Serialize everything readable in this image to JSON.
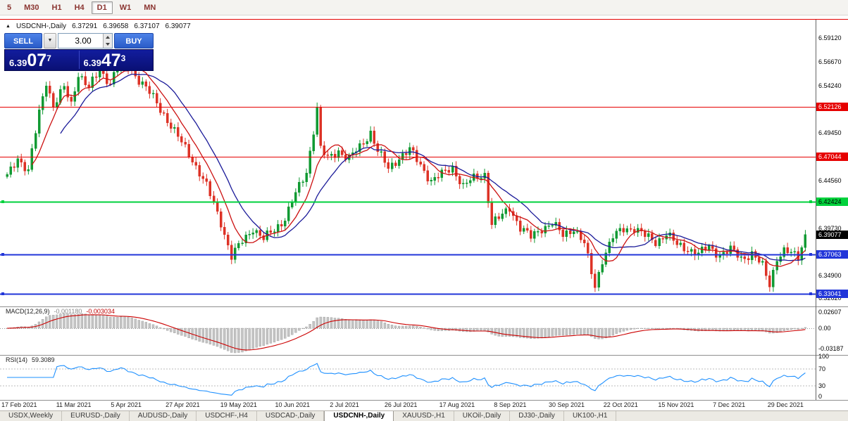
{
  "toolbar": {
    "periods": [
      "5",
      "M30",
      "H1",
      "H4",
      "D1",
      "W1",
      "MN"
    ],
    "active": "D1"
  },
  "chart_header": {
    "symbol_marker": "▲",
    "title": "USDCNH-,Daily",
    "open": "6.37291",
    "high": "6.39658",
    "low": "6.37107",
    "close": "6.39077"
  },
  "trade_panel": {
    "sell_label": "SELL",
    "buy_label": "BUY",
    "volume_value": "3.00",
    "dropdown_icon": "▼",
    "bid": {
      "prefix": "6.39",
      "big": "07",
      "sup": "7"
    },
    "ask": {
      "prefix": "6.39",
      "big": "47",
      "sup": "3"
    }
  },
  "tabs": {
    "items": [
      "USDX,Weekly",
      "EURUSD-,Daily",
      "AUDUSD-,Daily",
      "USDCHF-,H4",
      "USDCAD-,Daily",
      "USDCNH-,Daily",
      "XAUUSD-,H1",
      "UKOil-,Daily",
      "DJ30-,Daily",
      "UK100-,H1"
    ],
    "active_index": 5
  },
  "chart_data": [
    {
      "type": "candlestick",
      "symbol": "USDCNH-",
      "timeframe": "Daily",
      "ohlc": {
        "open": 6.37291,
        "high": 6.39658,
        "low": 6.37107,
        "close": 6.39077
      },
      "ylim": [
        6.322,
        6.6
      ],
      "x_labels": [
        "17 Feb 2021",
        "11 Mar 2021",
        "5 Apr 2021",
        "27 Apr 2021",
        "19 May 2021",
        "10 Jun 2021",
        "2 Jul 2021",
        "26 Jul 2021",
        "17 Aug 2021",
        "8 Sep 2021",
        "30 Sep 2021",
        "22 Oct 2021",
        "15 Nov 2021",
        "7 Dec 2021",
        "29 Dec 2021"
      ],
      "y_axis_labels": [
        "6.59120",
        "6.56670",
        "6.54240",
        "6.49450",
        "6.44560",
        "6.39730",
        "6.34900",
        "6.32620"
      ],
      "levels": [
        {
          "price": 6.52126,
          "display": "6.52126",
          "color": "#e60000",
          "text": "#ffffff",
          "width": 1
        },
        {
          "price": 6.47044,
          "display": "6.47044",
          "color": "#e60000",
          "text": "#ffffff",
          "width": 1
        },
        {
          "price": 6.42424,
          "display": "6.42424",
          "color": "#00d23c",
          "text": "#000000",
          "width": 2
        },
        {
          "price": 6.37063,
          "display": "6.37063",
          "color": "#2236d9",
          "text": "#ffffff",
          "width": 2
        },
        {
          "price": 6.33041,
          "display": "6.33041",
          "color": "#2236d9",
          "text": "#ffffff",
          "width": 2
        }
      ],
      "current_price": {
        "price": 6.39077,
        "display": "6.39077",
        "color": "#000000",
        "text": "#ffffff"
      },
      "candles_count": 225,
      "price_path": [
        [
          0,
          6.45
        ],
        [
          3,
          6.47
        ],
        [
          6,
          6.455
        ],
        [
          9,
          6.515
        ],
        [
          11,
          6.548
        ],
        [
          13,
          6.522
        ],
        [
          16,
          6.54
        ],
        [
          18,
          6.524
        ],
        [
          20,
          6.556
        ],
        [
          23,
          6.54
        ],
        [
          26,
          6.558
        ],
        [
          29,
          6.546
        ],
        [
          32,
          6.57
        ],
        [
          35,
          6.558
        ],
        [
          38,
          6.545
        ],
        [
          41,
          6.53
        ],
        [
          44,
          6.514
        ],
        [
          48,
          6.49
        ],
        [
          52,
          6.468
        ],
        [
          56,
          6.44
        ],
        [
          60,
          6.404
        ],
        [
          63,
          6.368
        ],
        [
          66,
          6.384
        ],
        [
          69,
          6.398
        ],
        [
          72,
          6.386
        ],
        [
          75,
          6.396
        ],
        [
          78,
          6.408
        ],
        [
          81,
          6.432
        ],
        [
          84,
          6.455
        ],
        [
          86,
          6.498
        ],
        [
          87,
          6.52
        ],
        [
          88,
          6.478
        ],
        [
          90,
          6.468
        ],
        [
          93,
          6.477
        ],
        [
          96,
          6.468
        ],
        [
          99,
          6.48
        ],
        [
          102,
          6.496
        ],
        [
          104,
          6.476
        ],
        [
          107,
          6.458
        ],
        [
          110,
          6.47
        ],
        [
          113,
          6.477
        ],
        [
          116,
          6.462
        ],
        [
          119,
          6.446
        ],
        [
          122,
          6.452
        ],
        [
          125,
          6.46
        ],
        [
          128,
          6.44
        ],
        [
          131,
          6.448
        ],
        [
          134,
          6.453
        ],
        [
          136,
          6.402
        ],
        [
          139,
          6.41
        ],
        [
          141,
          6.419
        ],
        [
          144,
          6.398
        ],
        [
          147,
          6.388
        ],
        [
          150,
          6.398
        ],
        [
          153,
          6.402
        ],
        [
          156,
          6.39
        ],
        [
          159,
          6.398
        ],
        [
          162,
          6.381
        ],
        [
          164,
          6.352
        ],
        [
          165,
          6.338
        ],
        [
          167,
          6.366
        ],
        [
          170,
          6.388
        ],
        [
          173,
          6.397
        ],
        [
          176,
          6.398
        ],
        [
          179,
          6.389
        ],
        [
          182,
          6.384
        ],
        [
          185,
          6.392
        ],
        [
          188,
          6.38
        ],
        [
          191,
          6.377
        ],
        [
          194,
          6.371
        ],
        [
          197,
          6.378
        ],
        [
          200,
          6.371
        ],
        [
          203,
          6.375
        ],
        [
          206,
          6.367
        ],
        [
          209,
          6.372
        ],
        [
          212,
          6.358
        ],
        [
          214,
          6.34
        ],
        [
          216,
          6.368
        ],
        [
          218,
          6.374
        ],
        [
          220,
          6.371
        ],
        [
          222,
          6.368
        ],
        [
          224,
          6.391
        ]
      ],
      "colors": {
        "up": "#119a33",
        "down": "#dd3226",
        "ma_fast": "#cc1111",
        "ma_slow": "#1a1a99"
      }
    },
    {
      "type": "macd",
      "label": "MACD(12,26,9)",
      "value_main": "-0.001180",
      "value_signal": "-0.003034",
      "axis_labels": [
        "0.02607",
        "0.00",
        "-0.03187"
      ],
      "colors": {
        "histogram": "#c4c4c4",
        "signal": "#cc0000"
      }
    },
    {
      "type": "rsi",
      "label": "RSI(14)",
      "value": "59.3089",
      "axis_labels": [
        "100",
        "70",
        "30",
        "0"
      ],
      "overbought": 70,
      "oversold": 30,
      "color": "#1e90ff"
    }
  ]
}
